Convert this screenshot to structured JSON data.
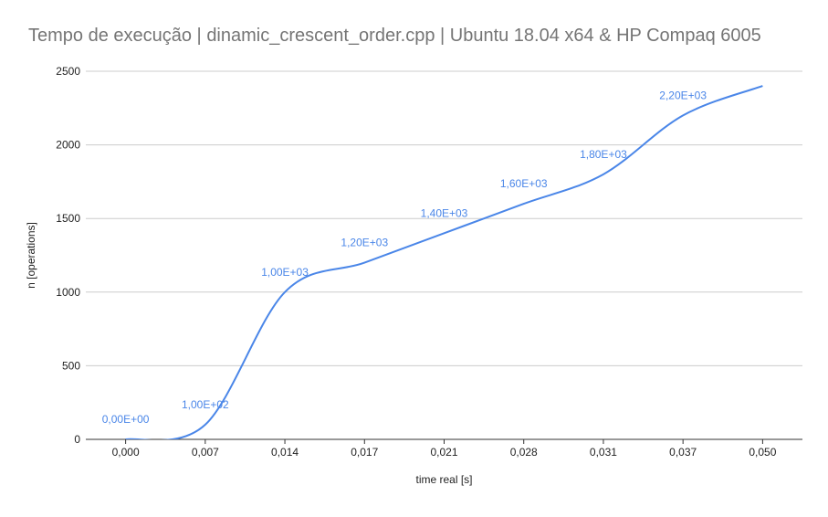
{
  "chart_data": {
    "type": "line",
    "title": "Tempo de execução | dinamic_crescent_order.cpp | Ubuntu 18.04 x64 & HP Compaq 6005",
    "xlabel": "time real [s]",
    "ylabel": "n [operations]",
    "categories": [
      "0,000",
      "0,007",
      "0,014",
      "0,017",
      "0,021",
      "0,028",
      "0,031",
      "0,037",
      "0,050"
    ],
    "series": [
      {
        "values": [
          0,
          100,
          1000,
          1200,
          1400,
          1600,
          1800,
          2200,
          2400
        ],
        "data_labels": [
          "0,00E+00",
          "1,00E+02",
          "1,00E+03",
          "1,20E+03",
          "1,40E+03",
          "1,60E+03",
          "1,80E+03",
          "2,20E+03",
          ""
        ]
      }
    ],
    "yticks": [
      "0",
      "500",
      "1000",
      "1500",
      "2000",
      "2500"
    ],
    "ylim": [
      0,
      2500
    ],
    "grid": true,
    "legend": "none",
    "colors": {
      "line": "#4a86e8",
      "grid": "#cccccc",
      "axis": "#333333"
    }
  }
}
